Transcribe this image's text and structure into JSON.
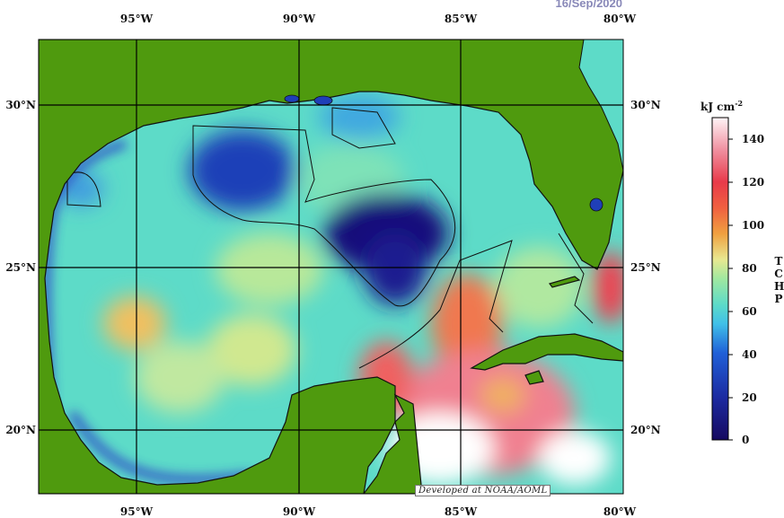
{
  "date": "16/Sep/2020",
  "lon_labels": [
    "95°W",
    "90°W",
    "85°W",
    "80°W"
  ],
  "lat_labels": [
    "30°N",
    "25°N",
    "20°N"
  ],
  "colorbar": {
    "unit_text": "kJ cm",
    "unit_exp": "-2",
    "ticks": [
      "140",
      "120",
      "100",
      "80",
      "60",
      "40",
      "20",
      "0"
    ],
    "vertical_title": "TCHP"
  },
  "credit": "Developed at NOAA/AOML",
  "colors": {
    "land": "#4f9a0e",
    "low": "#1c1280",
    "mid": "#5ddbc8",
    "high": "#e8404a"
  }
}
